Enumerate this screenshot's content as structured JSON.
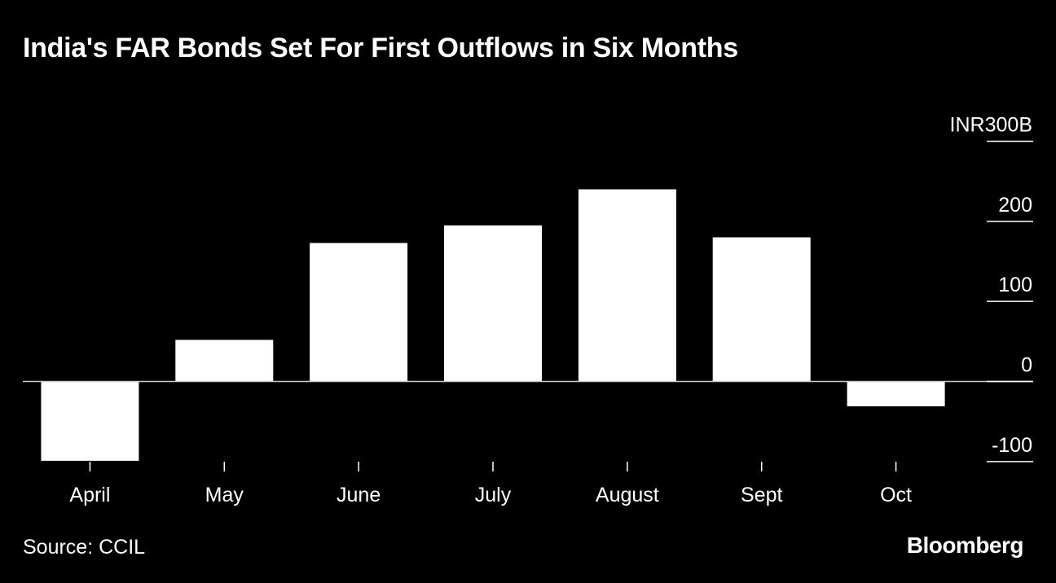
{
  "title": "India's FAR Bonds Set For First Outflows in Six Months",
  "source": "Source: CCIL",
  "brand": "Bloomberg",
  "colors": {
    "background": "#000000",
    "bar": "#ffffff",
    "text": "#ffffff"
  },
  "chart_data": {
    "type": "bar",
    "title": "India's FAR Bonds Set For First Outflows in Six Months",
    "xlabel": "",
    "ylabel": "",
    "y_unit_label": "INR",
    "categories": [
      "April",
      "May",
      "June",
      "July",
      "August",
      "Sept",
      "Oct"
    ],
    "values": [
      -99,
      52,
      173,
      195,
      240,
      180,
      -31
    ],
    "yticks": [
      {
        "value": 300,
        "label": "300B"
      },
      {
        "value": 200,
        "label": "200"
      },
      {
        "value": 100,
        "label": "100"
      },
      {
        "value": 0,
        "label": "0"
      },
      {
        "value": -100,
        "label": "-100"
      }
    ],
    "ylim": [
      -100,
      300
    ],
    "grid": false,
    "axis_position": "right"
  }
}
